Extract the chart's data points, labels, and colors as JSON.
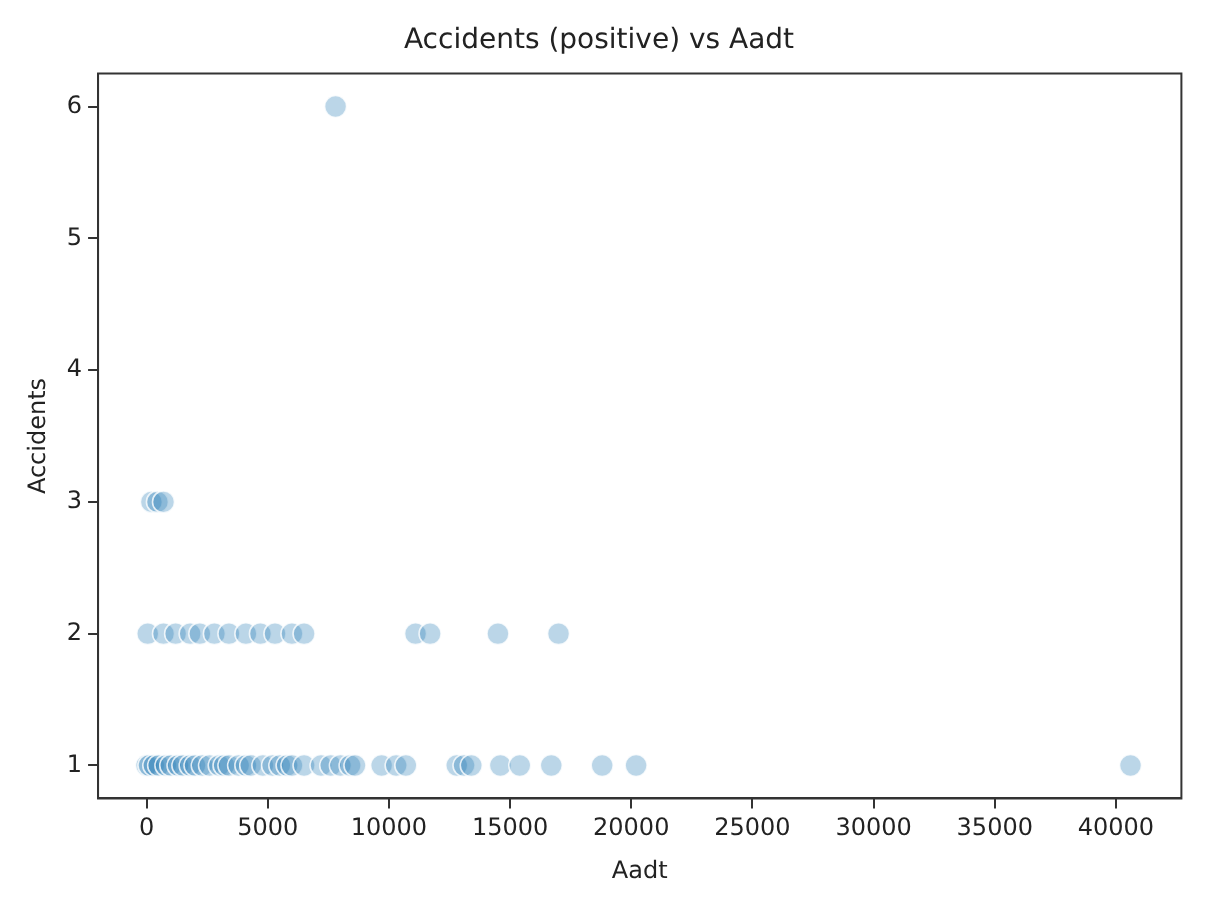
{
  "chart_data": {
    "type": "scatter",
    "title": "Accidents (positive) vs Aadt",
    "xlabel": "Aadt",
    "ylabel": "Accidents",
    "series": [
      {
        "color": "#1f77b4",
        "x": [
          0,
          100,
          300,
          500,
          800,
          1000,
          1300,
          1500,
          1800,
          2000,
          2300,
          2600,
          3000,
          3200,
          3400,
          3800,
          4100,
          4300,
          4800,
          5200,
          5500,
          5800,
          6000,
          6500,
          7200,
          7600,
          8000,
          8400,
          8600,
          9700,
          10300,
          10700,
          12800,
          13100,
          13400,
          14600,
          15400,
          16700,
          18800,
          20200,
          40600,
          50,
          700,
          1200,
          1800,
          2200,
          2800,
          3400,
          4100,
          4700,
          5300,
          6000,
          6500,
          11100,
          11700,
          14500,
          17000,
          200,
          450,
          700,
          7800
        ],
        "values": [
          1,
          1,
          1,
          1,
          1,
          1,
          1,
          1,
          1,
          1,
          1,
          1,
          1,
          1,
          1,
          1,
          1,
          1,
          1,
          1,
          1,
          1,
          1,
          1,
          1,
          1,
          1,
          1,
          1,
          1,
          1,
          1,
          1,
          1,
          1,
          1,
          1,
          1,
          1,
          1,
          1,
          2,
          2,
          2,
          2,
          2,
          2,
          2,
          2,
          2,
          2,
          2,
          2,
          2,
          2,
          2,
          2,
          3,
          3,
          3,
          6
        ]
      }
    ],
    "xlim": [
      -2000,
      42700
    ],
    "xticks": [
      0,
      5000,
      10000,
      15000,
      20000,
      25000,
      30000,
      35000,
      40000
    ],
    "ylim": [
      0.75,
      6.25
    ],
    "yticks": [
      1,
      2,
      3,
      4,
      5,
      6
    ],
    "grid": false,
    "legend": false,
    "marker": "circle"
  }
}
